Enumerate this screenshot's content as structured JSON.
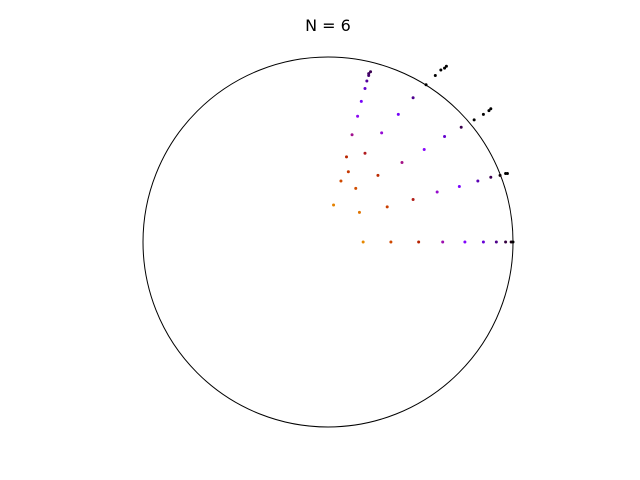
{
  "chart_data": {
    "type": "scatter",
    "title": "N = 6",
    "xlabel": "",
    "ylabel": "",
    "grid": false,
    "legend": "none",
    "boundary": "unit-circle",
    "xlim": [
      -1,
      1
    ],
    "ylim": [
      -1,
      1
    ],
    "colormap": "gnuplot",
    "series": [
      {
        "angle_deg": 0,
        "points": [
          [
            0.19,
            0.0
          ],
          [
            0.34,
            0.0
          ],
          [
            0.49,
            0.0
          ],
          [
            0.62,
            0.0
          ],
          [
            0.74,
            0.0
          ],
          [
            0.84,
            0.0
          ],
          [
            0.91,
            0.0
          ],
          [
            0.96,
            0.0
          ],
          [
            0.99,
            0.0
          ],
          [
            1.0,
            0.0
          ]
        ]
      },
      {
        "angle_deg": 15,
        "points": [
          [
            0.17,
            0.16
          ],
          [
            0.32,
            0.19
          ],
          [
            0.46,
            0.23
          ],
          [
            0.59,
            0.27
          ],
          [
            0.71,
            0.3
          ],
          [
            0.81,
            0.33
          ],
          [
            0.88,
            0.35
          ],
          [
            0.93,
            0.36
          ],
          [
            0.96,
            0.37
          ],
          [
            0.97,
            0.37
          ]
        ]
      },
      {
        "angle_deg": 30,
        "points": [
          [
            0.15,
            0.29
          ],
          [
            0.27,
            0.36
          ],
          [
            0.4,
            0.43
          ],
          [
            0.52,
            0.5
          ],
          [
            0.63,
            0.57
          ],
          [
            0.72,
            0.62
          ],
          [
            0.79,
            0.66
          ],
          [
            0.84,
            0.69
          ],
          [
            0.87,
            0.71
          ],
          [
            0.88,
            0.72
          ]
        ]
      },
      {
        "angle_deg": 45,
        "points": [
          [
            0.11,
            0.38
          ],
          [
            0.2,
            0.48
          ],
          [
            0.29,
            0.59
          ],
          [
            0.38,
            0.69
          ],
          [
            0.46,
            0.78
          ],
          [
            0.53,
            0.85
          ],
          [
            0.58,
            0.9
          ],
          [
            0.61,
            0.93
          ],
          [
            0.63,
            0.94
          ],
          [
            0.64,
            0.95
          ]
        ]
      },
      {
        "angle_deg": 60,
        "points": [
          [
            0.03,
            0.2
          ],
          [
            0.07,
            0.33
          ],
          [
            0.1,
            0.46
          ],
          [
            0.13,
            0.58
          ],
          [
            0.16,
            0.68
          ],
          [
            0.18,
            0.76
          ],
          [
            0.2,
            0.83
          ],
          [
            0.21,
            0.87
          ],
          [
            0.22,
            0.9
          ],
          [
            0.22,
            0.91
          ],
          [
            0.23,
            0.92
          ]
        ]
      }
    ]
  }
}
